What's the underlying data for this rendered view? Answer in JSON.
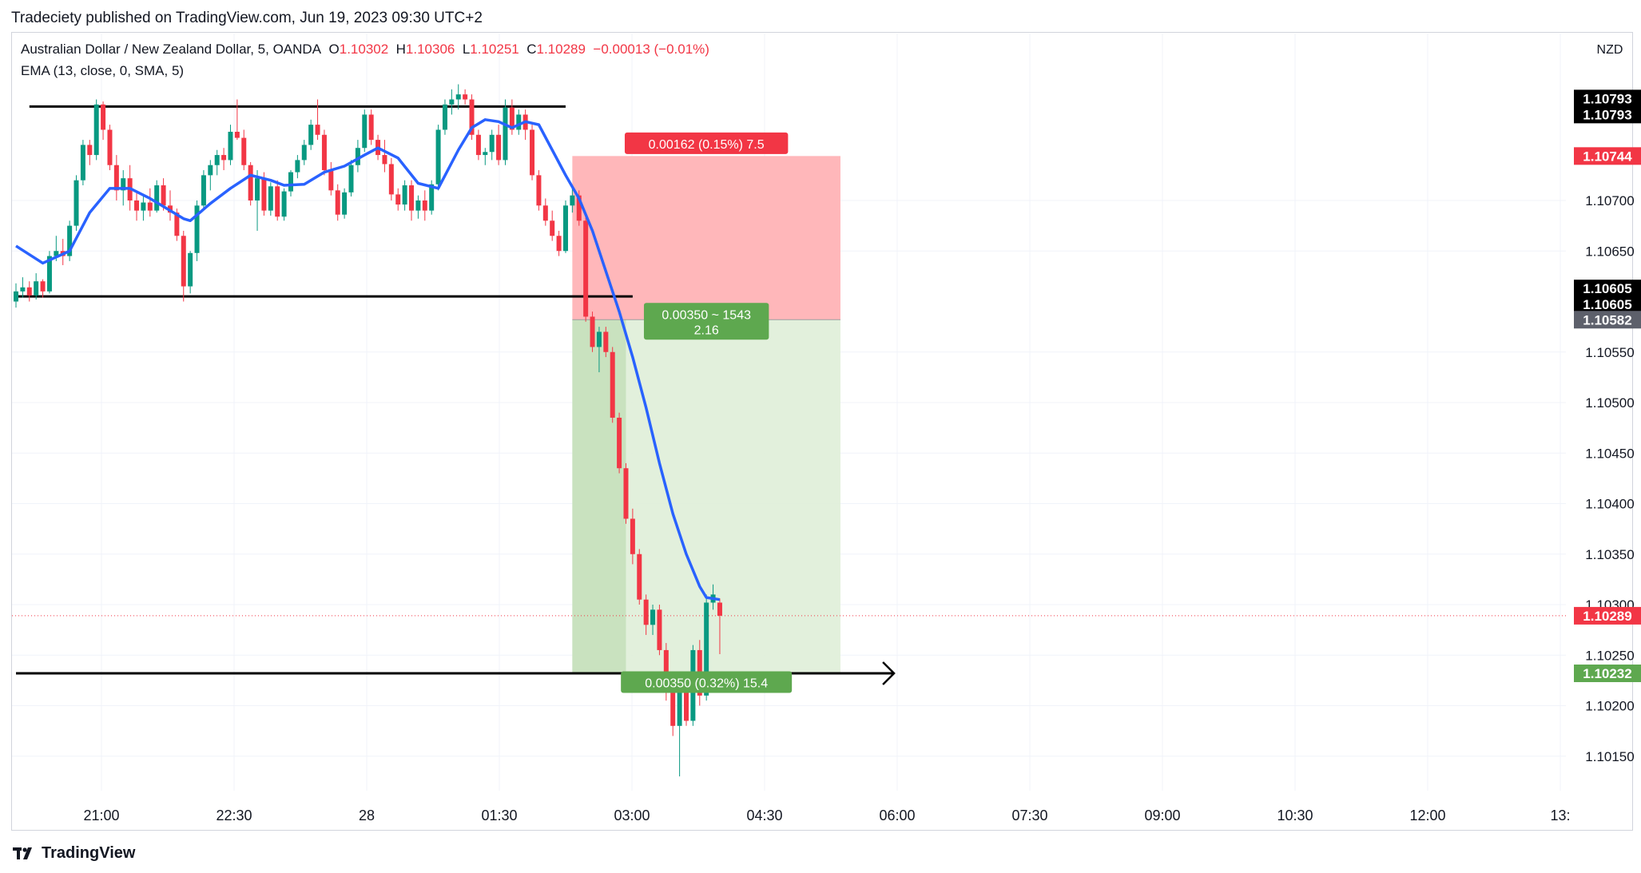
{
  "header": {
    "credit": "Tradeciety published on TradingView.com, Jun 19, 2023 09:30 UTC+2"
  },
  "legend": {
    "symbol": "Australian Dollar / New Zealand Dollar, 5, OANDA",
    "open_label": "O",
    "open": "1.10302",
    "high_label": "H",
    "high": "1.10306",
    "low_label": "L",
    "low": "1.10251",
    "close_label": "C",
    "close": "1.10289",
    "change": "−0.00013 (−0.01%)",
    "indicator": "EMA (13, close, 0, SMA, 5)"
  },
  "brand": {
    "name": "TradingView",
    "logo_icon": "tradingview-logo-icon"
  },
  "colors": {
    "up": "#089981",
    "down": "#f23645",
    "ema": "#2962ff",
    "stop_zone": "#ffb3b6",
    "target_zone": "#dfeed8",
    "target_zone_dark": "#c3dfb8",
    "green_label": "#5ea84f",
    "red_label": "#f23645",
    "grid": "#f0f3fa"
  },
  "chart_data": {
    "type": "candlestick",
    "symbol": "AUDNZD",
    "timeframe": "5",
    "currency": "NZD",
    "y_ticks": [
      "1.10150",
      "1.10200",
      "1.10250",
      "1.10300",
      "1.10350",
      "1.10400",
      "1.10450",
      "1.10500",
      "1.10550",
      "1.10650",
      "1.10700"
    ],
    "x_ticks": [
      "21:00",
      "22:30",
      "28",
      "01:30",
      "03:00",
      "04:30",
      "06:00",
      "07:30",
      "09:00",
      "10:30",
      "12:00",
      "13:"
    ],
    "ylim": [
      1.1012,
      1.1086
    ],
    "candles": [
      [
        1.106,
        1.10618,
        1.10594,
        1.1061
      ],
      [
        1.1061,
        1.10624,
        1.10604,
        1.10614
      ],
      [
        1.10614,
        1.1062,
        1.106,
        1.10606
      ],
      [
        1.10606,
        1.10628,
        1.10602,
        1.1062
      ],
      [
        1.1062,
        1.10622,
        1.10604,
        1.1061
      ],
      [
        1.1061,
        1.1065,
        1.10608,
        1.10645
      ],
      [
        1.10645,
        1.10665,
        1.1064,
        1.1065
      ],
      [
        1.1065,
        1.10662,
        1.10636,
        1.10645
      ],
      [
        1.10645,
        1.1068,
        1.1064,
        1.10675
      ],
      [
        1.10675,
        1.10725,
        1.1067,
        1.1072
      ],
      [
        1.1072,
        1.1076,
        1.10715,
        1.10755
      ],
      [
        1.10755,
        1.1076,
        1.10735,
        1.10745
      ],
      [
        1.10745,
        1.108,
        1.1074,
        1.10795
      ],
      [
        1.10795,
        1.10798,
        1.1076,
        1.1077
      ],
      [
        1.1077,
        1.10775,
        1.1073,
        1.10735
      ],
      [
        1.10735,
        1.10745,
        1.107,
        1.1071
      ],
      [
        1.1071,
        1.1073,
        1.10695,
        1.10722
      ],
      [
        1.10722,
        1.10735,
        1.1069,
        1.107
      ],
      [
        1.107,
        1.1071,
        1.1068,
        1.1069
      ],
      [
        1.1069,
        1.10705,
        1.1068,
        1.10698
      ],
      [
        1.10698,
        1.10712,
        1.10684,
        1.1069
      ],
      [
        1.1069,
        1.1072,
        1.10688,
        1.10715
      ],
      [
        1.10715,
        1.10722,
        1.1069,
        1.10695
      ],
      [
        1.10695,
        1.1071,
        1.1068,
        1.10688
      ],
      [
        1.10688,
        1.10692,
        1.1066,
        1.10665
      ],
      [
        1.10665,
        1.1067,
        1.106,
        1.10615
      ],
      [
        1.10615,
        1.1065,
        1.10608,
        1.10648
      ],
      [
        1.10648,
        1.107,
        1.1064,
        1.10695
      ],
      [
        1.10695,
        1.1073,
        1.1069,
        1.10725
      ],
      [
        1.10725,
        1.1074,
        1.1071,
        1.10735
      ],
      [
        1.10735,
        1.1075,
        1.10725,
        1.10745
      ],
      [
        1.10745,
        1.10752,
        1.1073,
        1.1074
      ],
      [
        1.1074,
        1.10775,
        1.10735,
        1.10768
      ],
      [
        1.10768,
        1.108,
        1.1076,
        1.10762
      ],
      [
        1.10762,
        1.1077,
        1.1073,
        1.10735
      ],
      [
        1.10735,
        1.10738,
        1.10695,
        1.107
      ],
      [
        1.107,
        1.1073,
        1.1067,
        1.10722
      ],
      [
        1.10722,
        1.10728,
        1.10685,
        1.1069
      ],
      [
        1.1069,
        1.10718,
        1.10685,
        1.10714
      ],
      [
        1.10714,
        1.1072,
        1.1068,
        1.10684
      ],
      [
        1.10684,
        1.10712,
        1.1068,
        1.10709
      ],
      [
        1.10709,
        1.1073,
        1.10704,
        1.10728
      ],
      [
        1.10728,
        1.10745,
        1.10722,
        1.1074
      ],
      [
        1.1074,
        1.1076,
        1.10735,
        1.10755
      ],
      [
        1.10755,
        1.1078,
        1.1075,
        1.10775
      ],
      [
        1.10775,
        1.108,
        1.1076,
        1.10765
      ],
      [
        1.10765,
        1.1077,
        1.10725,
        1.1073
      ],
      [
        1.1073,
        1.10738,
        1.10705,
        1.1071
      ],
      [
        1.1071,
        1.10716,
        1.1068,
        1.10686
      ],
      [
        1.10686,
        1.10712,
        1.10682,
        1.10708
      ],
      [
        1.10708,
        1.1074,
        1.10704,
        1.10735
      ],
      [
        1.10735,
        1.1076,
        1.10728,
        1.10752
      ],
      [
        1.10752,
        1.1079,
        1.10748,
        1.10785
      ],
      [
        1.10785,
        1.1079,
        1.10755,
        1.1076
      ],
      [
        1.1076,
        1.10765,
        1.1074,
        1.10745
      ],
      [
        1.10745,
        1.1076,
        1.10728,
        1.10736
      ],
      [
        1.10736,
        1.10742,
        1.107,
        1.10706
      ],
      [
        1.10706,
        1.10712,
        1.1069,
        1.10696
      ],
      [
        1.10696,
        1.1072,
        1.1069,
        1.10715
      ],
      [
        1.10715,
        1.1072,
        1.1068,
        1.1069
      ],
      [
        1.1069,
        1.10705,
        1.10682,
        1.107
      ],
      [
        1.107,
        1.1071,
        1.1068,
        1.1069
      ],
      [
        1.1069,
        1.1072,
        1.10686,
        1.10716
      ],
      [
        1.10716,
        1.10775,
        1.1071,
        1.1077
      ],
      [
        1.1077,
        1.108,
        1.10765,
        1.10795
      ],
      [
        1.10795,
        1.1081,
        1.10785,
        1.108
      ],
      [
        1.108,
        1.10815,
        1.1079,
        1.10805
      ],
      [
        1.10805,
        1.1081,
        1.10795,
        1.108
      ],
      [
        1.108,
        1.10805,
        1.1076,
        1.10765
      ],
      [
        1.10765,
        1.1077,
        1.1074,
        1.10745
      ],
      [
        1.10745,
        1.10752,
        1.10735,
        1.10748
      ],
      [
        1.10748,
        1.1077,
        1.1074,
        1.10765
      ],
      [
        1.10765,
        1.10775,
        1.10735,
        1.1074
      ],
      [
        1.1074,
        1.108,
        1.10735,
        1.10792
      ],
      [
        1.10792,
        1.108,
        1.10765,
        1.1077
      ],
      [
        1.1077,
        1.1079,
        1.10765,
        1.10785
      ],
      [
        1.10785,
        1.1079,
        1.1076,
        1.1077
      ],
      [
        1.1077,
        1.10775,
        1.1072,
        1.10725
      ],
      [
        1.10725,
        1.1073,
        1.1069,
        1.10695
      ],
      [
        1.10695,
        1.10702,
        1.10675,
        1.1068
      ],
      [
        1.1068,
        1.1069,
        1.1066,
        1.10665
      ],
      [
        1.10665,
        1.1067,
        1.10645,
        1.1065
      ],
      [
        1.1065,
        1.107,
        1.10648,
        1.10695
      ],
      [
        1.10695,
        1.10715,
        1.10688,
        1.10705
      ],
      [
        1.10705,
        1.1071,
        1.10675,
        1.1068
      ],
      [
        1.1068,
        1.10685,
        1.1058,
        1.10585
      ],
      [
        1.10585,
        1.1059,
        1.1055,
        1.10555
      ],
      [
        1.10555,
        1.10575,
        1.1053,
        1.1057
      ],
      [
        1.1057,
        1.10575,
        1.10545,
        1.1055
      ],
      [
        1.1055,
        1.10555,
        1.1048,
        1.10485
      ],
      [
        1.10485,
        1.1049,
        1.1043,
        1.10435
      ],
      [
        1.10435,
        1.1044,
        1.1038,
        1.10385
      ],
      [
        1.10385,
        1.10395,
        1.1034,
        1.1035
      ],
      [
        1.1035,
        1.10355,
        1.103,
        1.10305
      ],
      [
        1.10305,
        1.1031,
        1.1027,
        1.1028
      ],
      [
        1.1028,
        1.103,
        1.1027,
        1.10295
      ],
      [
        1.10295,
        1.103,
        1.1025,
        1.10255
      ],
      [
        1.10255,
        1.10262,
        1.10205,
        1.10215
      ],
      [
        1.10215,
        1.1022,
        1.1017,
        1.1018
      ],
      [
        1.1018,
        1.1023,
        1.1013,
        1.1022
      ],
      [
        1.1022,
        1.10225,
        1.1018,
        1.10185
      ],
      [
        1.10185,
        1.1026,
        1.1018,
        1.10255
      ],
      [
        1.10255,
        1.10265,
        1.102,
        1.1021
      ],
      [
        1.1021,
        1.1031,
        1.10205,
        1.10302
      ],
      [
        1.10302,
        1.1032,
        1.10295,
        1.1031
      ],
      [
        1.10302,
        1.10306,
        1.10251,
        1.10289
      ]
    ],
    "ema": [
      [
        0,
        1.10655
      ],
      [
        4,
        1.10638
      ],
      [
        8,
        1.1065
      ],
      [
        11,
        1.10688
      ],
      [
        14,
        1.10712
      ],
      [
        17,
        1.10712
      ],
      [
        20,
        1.10702
      ],
      [
        23,
        1.1069
      ],
      [
        25,
        1.10682
      ],
      [
        26,
        1.1068
      ],
      [
        29,
        1.10697
      ],
      [
        32,
        1.10712
      ],
      [
        35,
        1.10725
      ],
      [
        38,
        1.1072
      ],
      [
        40,
        1.10715
      ],
      [
        43,
        1.10716
      ],
      [
        46,
        1.10728
      ],
      [
        49,
        1.10734
      ],
      [
        52,
        1.10745
      ],
      [
        54,
        1.10752
      ],
      [
        57,
        1.10742
      ],
      [
        60,
        1.10717
      ],
      [
        63,
        1.10712
      ],
      [
        66,
        1.1075
      ],
      [
        68,
        1.10772
      ],
      [
        70,
        1.1078
      ],
      [
        72,
        1.10778
      ],
      [
        74,
        1.10772
      ],
      [
        76,
        1.10778
      ],
      [
        78,
        1.10775
      ],
      [
        80,
        1.1075
      ],
      [
        82,
        1.10725
      ],
      [
        84,
        1.10702
      ],
      [
        86,
        1.1067
      ],
      [
        88,
        1.1063
      ],
      [
        90,
        1.1059
      ],
      [
        92,
        1.10545
      ],
      [
        94,
        1.10495
      ],
      [
        96,
        1.1044
      ],
      [
        98,
        1.1039
      ],
      [
        100,
        1.1035
      ],
      [
        102,
        1.10318
      ],
      [
        103,
        1.10307
      ],
      [
        105,
        1.10305
      ]
    ],
    "lines": [
      {
        "name": "range-top",
        "y": 1.10793,
        "x_from": 2,
        "x_to": 82
      },
      {
        "name": "range-bottom",
        "y": 1.10605,
        "x_from": 0,
        "x_to": 92
      },
      {
        "name": "target-arrow",
        "y": 1.10232,
        "x_from": 0,
        "x_to": 131
      }
    ],
    "position": {
      "type": "short",
      "entry": 1.10582,
      "stop": 1.10744,
      "target": 1.10232,
      "x_from": 83,
      "x_to": 123,
      "x_current": 91,
      "stop_label": "0.00162 (0.15%) 7.5",
      "mid_label_line1": "0.00350 ~ 1543",
      "mid_label_line2": "2.16",
      "target_label": "0.00350 (0.32%) 15.4"
    },
    "price_tags": [
      {
        "value": "1.10793",
        "style": "black"
      },
      {
        "value": "1.10793",
        "style": "black"
      },
      {
        "value": "1.10744",
        "style": "red"
      },
      {
        "value": "1.10605",
        "style": "black"
      },
      {
        "value": "1.10605",
        "style": "black"
      },
      {
        "value": "1.10582",
        "style": "gray"
      },
      {
        "value": "1.10289",
        "style": "red"
      },
      {
        "value": "1.10232",
        "style": "green"
      }
    ]
  }
}
